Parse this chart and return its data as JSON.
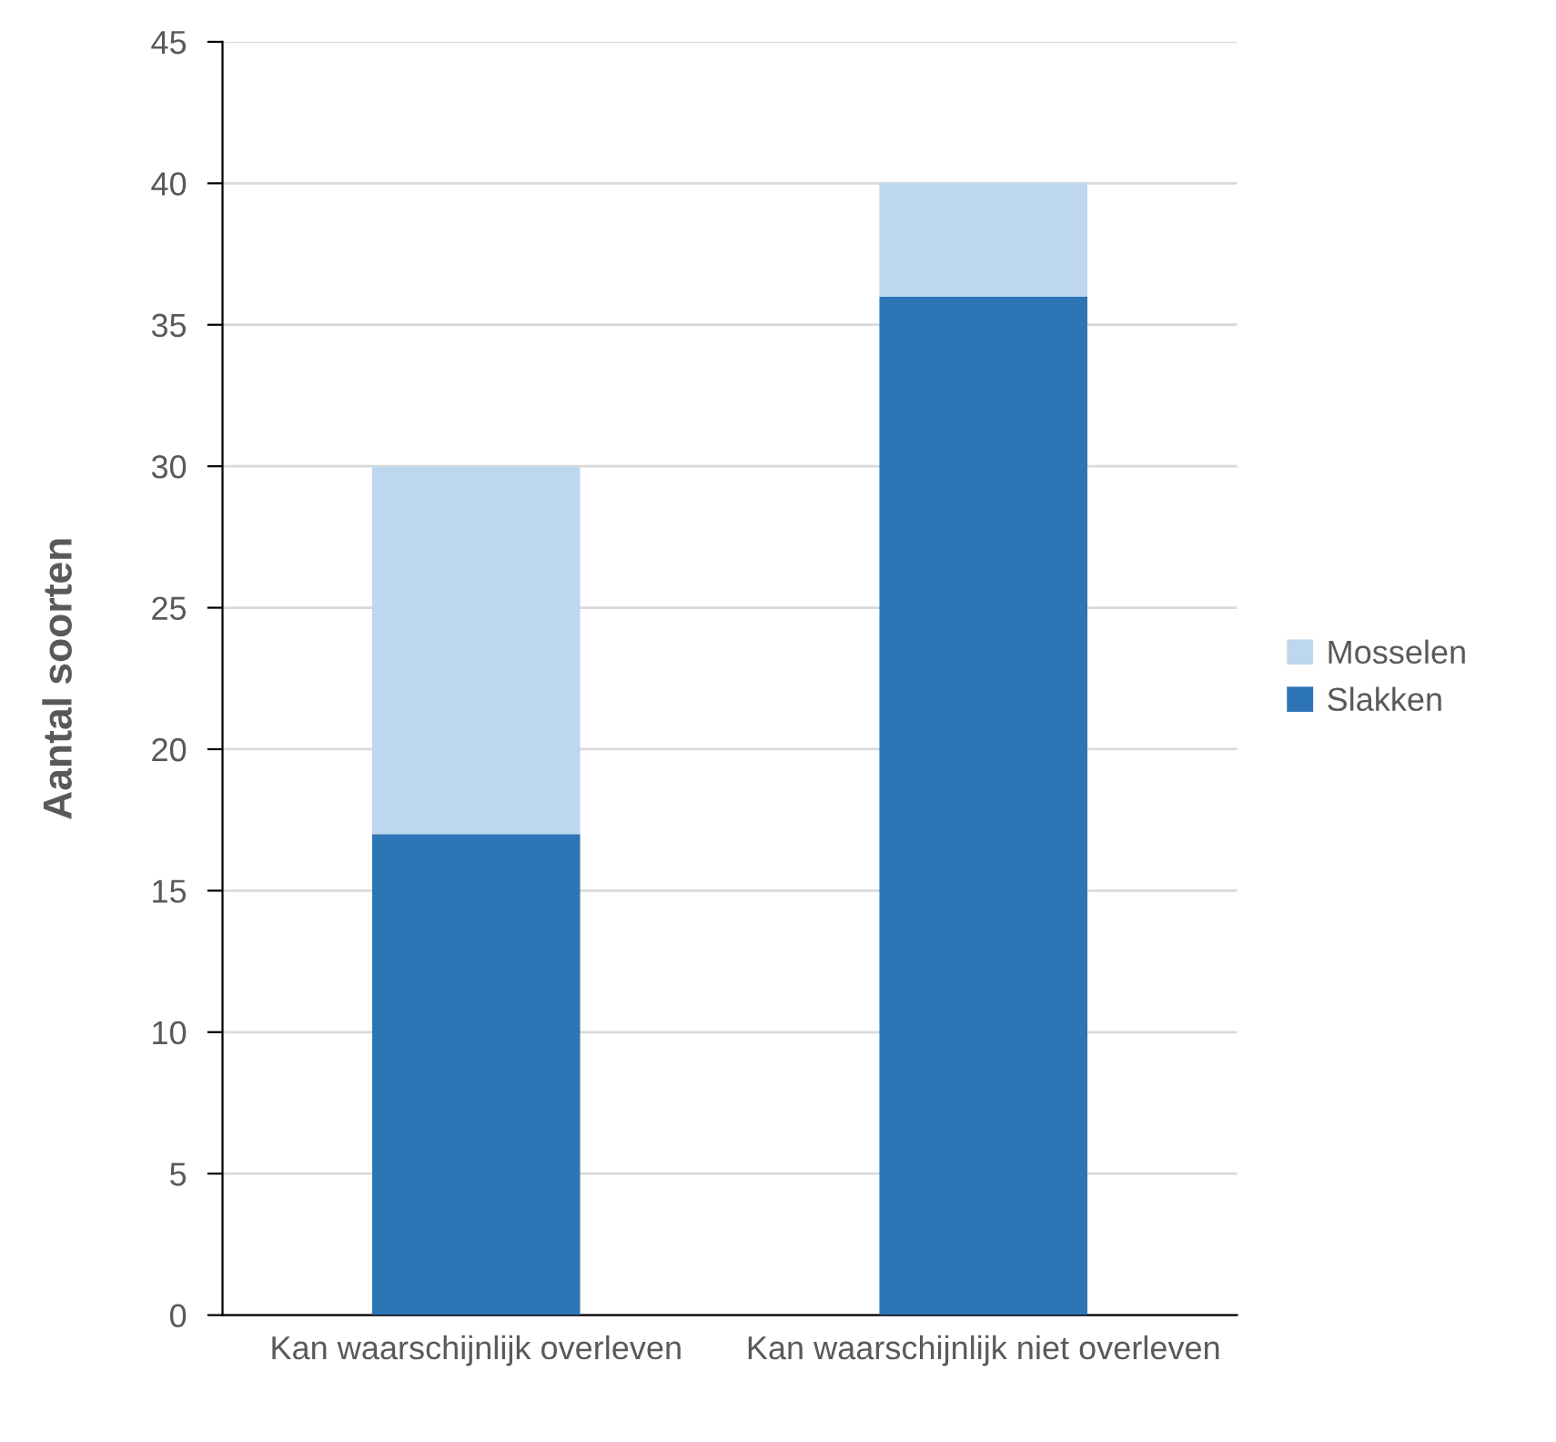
{
  "chart_data": {
    "type": "bar",
    "stacked": true,
    "ylabel": "Aantal soorten",
    "categories": [
      "Kan waarschijnlijk overleven",
      "Kan waarschijnlijk niet overleven"
    ],
    "series": [
      {
        "name": "Slakken",
        "color": "#2e75b6",
        "values": [
          17,
          36
        ]
      },
      {
        "name": "Mosselen",
        "color": "#bdd7ee",
        "values": [
          13,
          4
        ]
      }
    ],
    "ylim": [
      0,
      45
    ],
    "yticks": [
      0,
      5,
      10,
      15,
      20,
      25,
      30,
      35,
      40,
      45
    ],
    "grid": "y",
    "legend": "right"
  }
}
